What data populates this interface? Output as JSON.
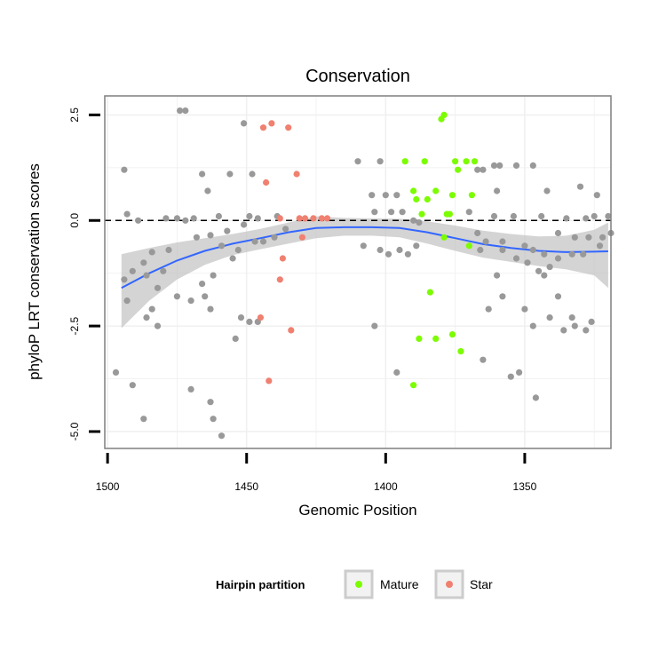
{
  "chart_data": {
    "type": "scatter",
    "title": "Conservation",
    "xlabel": "Genomic Position",
    "ylabel": "phyloP LRT conservation scores",
    "xlim": [
      1501,
      1319
    ],
    "ylim": [
      -5.4,
      2.95
    ],
    "x_reversed": true,
    "x_ticks": [
      1500,
      1450,
      1400,
      1350
    ],
    "x_tick_labels": [
      "1500",
      "1450",
      "1400",
      "1350"
    ],
    "y_ticks": [
      -5,
      -2.5,
      0,
      2.5
    ],
    "y_tick_labels": [
      "-5.0",
      "-2.5",
      "0.0",
      "2.5"
    ],
    "grid": true,
    "reference_line": {
      "y": 0,
      "style": "dashed",
      "color": "#000000"
    },
    "legend": {
      "title": "Hairpin partition",
      "position": "bottom",
      "entries": [
        {
          "label": "Mature",
          "color": "#7CFC00"
        },
        {
          "label": "Star",
          "color": "#F08070"
        }
      ]
    },
    "smooth": {
      "color": "#3366FF",
      "band_color": "#bdbdbd",
      "x": [
        1495,
        1485,
        1475,
        1465,
        1455,
        1445,
        1435,
        1425,
        1415,
        1405,
        1395,
        1385,
        1375,
        1365,
        1355,
        1345,
        1335,
        1325,
        1320
      ],
      "y": [
        -1.6,
        -1.25,
        -0.95,
        -0.72,
        -0.55,
        -0.42,
        -0.28,
        -0.18,
        -0.16,
        -0.16,
        -0.18,
        -0.28,
        -0.42,
        -0.56,
        -0.65,
        -0.72,
        -0.75,
        -0.74,
        -0.73
      ],
      "lower": [
        -2.55,
        -1.9,
        -1.4,
        -1.05,
        -0.82,
        -0.68,
        -0.55,
        -0.42,
        -0.36,
        -0.36,
        -0.4,
        -0.55,
        -0.72,
        -0.88,
        -0.98,
        -1.08,
        -1.16,
        -1.3,
        -1.6
      ],
      "upper": [
        -0.8,
        -0.65,
        -0.52,
        -0.42,
        -0.32,
        -0.2,
        -0.05,
        0.1,
        0.06,
        0.05,
        0.04,
        -0.02,
        -0.12,
        -0.24,
        -0.32,
        -0.38,
        -0.36,
        -0.22,
        -0.05
      ]
    },
    "series": [
      {
        "name": "Mature",
        "color": "#7CFC00",
        "points": [
          [
            1380,
            2.4
          ],
          [
            1379,
            2.5
          ],
          [
            1393,
            1.4
          ],
          [
            1386,
            1.4
          ],
          [
            1375,
            1.4
          ],
          [
            1371,
            1.4
          ],
          [
            1368,
            1.4
          ],
          [
            1390,
            0.7
          ],
          [
            1382,
            0.7
          ],
          [
            1389,
            0.5
          ],
          [
            1385,
            0.5
          ],
          [
            1376,
            0.6
          ],
          [
            1369,
            0.6
          ],
          [
            1374,
            1.2
          ],
          [
            1387,
            0.15
          ],
          [
            1378,
            0.15
          ],
          [
            1377,
            0.15
          ],
          [
            1379,
            -0.4
          ],
          [
            1370,
            -0.6
          ],
          [
            1384,
            -1.7
          ],
          [
            1388,
            -2.8
          ],
          [
            1382,
            -2.8
          ],
          [
            1376,
            -2.7
          ],
          [
            1373,
            -3.1
          ],
          [
            1390,
            -3.9
          ]
        ]
      },
      {
        "name": "Star",
        "color": "#F08070",
        "points": [
          [
            1444,
            2.2
          ],
          [
            1441,
            2.3
          ],
          [
            1435,
            2.2
          ],
          [
            1432,
            1.1
          ],
          [
            1443,
            0.9
          ],
          [
            1438,
            0.05
          ],
          [
            1431,
            0.05
          ],
          [
            1429,
            0.05
          ],
          [
            1426,
            0.05
          ],
          [
            1423,
            0.05
          ],
          [
            1421,
            0.05
          ],
          [
            1430,
            -0.4
          ],
          [
            1437,
            -0.9
          ],
          [
            1438,
            -1.4
          ],
          [
            1445,
            -2.3
          ],
          [
            1434,
            -2.6
          ],
          [
            1442,
            -3.8
          ]
        ]
      },
      {
        "name": "",
        "color": "#999999",
        "points": [
          [
            1474,
            2.6
          ],
          [
            1472,
            2.6
          ],
          [
            1451,
            2.3
          ],
          [
            1494,
            1.2
          ],
          [
            1466,
            1.1
          ],
          [
            1456,
            1.1
          ],
          [
            1448,
            1.1
          ],
          [
            1464,
            0.7
          ],
          [
            1493,
            0.15
          ],
          [
            1489,
            0.0
          ],
          [
            1479,
            0.05
          ],
          [
            1475,
            0.05
          ],
          [
            1472,
            0.0
          ],
          [
            1469,
            0.05
          ],
          [
            1460,
            0.1
          ],
          [
            1449,
            0.1
          ],
          [
            1446,
            0.05
          ],
          [
            1439,
            0.1
          ],
          [
            1451,
            -0.1
          ],
          [
            1457,
            -0.25
          ],
          [
            1463,
            -0.35
          ],
          [
            1468,
            -0.4
          ],
          [
            1478,
            -0.7
          ],
          [
            1484,
            -0.75
          ],
          [
            1487,
            -1.0
          ],
          [
            1491,
            -1.2
          ],
          [
            1494,
            -1.4
          ],
          [
            1480,
            -1.2
          ],
          [
            1486,
            -1.3
          ],
          [
            1482,
            -1.6
          ],
          [
            1475,
            -1.8
          ],
          [
            1466,
            -1.5
          ],
          [
            1462,
            -1.3
          ],
          [
            1455,
            -0.9
          ],
          [
            1459,
            -0.6
          ],
          [
            1453,
            -0.7
          ],
          [
            1447,
            -0.5
          ],
          [
            1444,
            -0.5
          ],
          [
            1440,
            -0.4
          ],
          [
            1436,
            -0.2
          ],
          [
            1484,
            -2.1
          ],
          [
            1486,
            -2.3
          ],
          [
            1482,
            -2.5
          ],
          [
            1470,
            -1.9
          ],
          [
            1465,
            -1.8
          ],
          [
            1493,
            -1.9
          ],
          [
            1463,
            -2.1
          ],
          [
            1452,
            -2.3
          ],
          [
            1449,
            -2.4
          ],
          [
            1446,
            -2.4
          ],
          [
            1454,
            -2.8
          ],
          [
            1497,
            -3.6
          ],
          [
            1491,
            -3.9
          ],
          [
            1487,
            -4.7
          ],
          [
            1470,
            -4.0
          ],
          [
            1463,
            -4.3
          ],
          [
            1462,
            -4.7
          ],
          [
            1459,
            -5.1
          ],
          [
            1410,
            1.4
          ],
          [
            1402,
            1.4
          ],
          [
            1405,
            0.6
          ],
          [
            1400,
            0.6
          ],
          [
            1396,
            0.6
          ],
          [
            1404,
            0.2
          ],
          [
            1398,
            0.2
          ],
          [
            1394,
            0.2
          ],
          [
            1390,
            0.0
          ],
          [
            1388,
            -0.05
          ],
          [
            1408,
            -0.6
          ],
          [
            1402,
            -0.7
          ],
          [
            1399,
            -0.8
          ],
          [
            1395,
            -0.7
          ],
          [
            1392,
            -0.8
          ],
          [
            1389,
            -0.6
          ],
          [
            1404,
            -2.5
          ],
          [
            1396,
            -3.6
          ],
          [
            1361,
            1.3
          ],
          [
            1367,
            1.2
          ],
          [
            1365,
            1.2
          ],
          [
            1359,
            1.3
          ],
          [
            1353,
            1.3
          ],
          [
            1347,
            1.3
          ],
          [
            1360,
            0.7
          ],
          [
            1342,
            0.7
          ],
          [
            1330,
            0.8
          ],
          [
            1324,
            0.6
          ],
          [
            1370,
            0.2
          ],
          [
            1361,
            0.1
          ],
          [
            1354,
            0.1
          ],
          [
            1344,
            0.1
          ],
          [
            1335,
            0.05
          ],
          [
            1328,
            0.05
          ],
          [
            1325,
            0.1
          ],
          [
            1320,
            0.1
          ],
          [
            1367,
            -0.3
          ],
          [
            1364,
            -0.5
          ],
          [
            1358,
            -0.5
          ],
          [
            1350,
            -0.6
          ],
          [
            1338,
            -0.3
          ],
          [
            1332,
            -0.4
          ],
          [
            1327,
            -0.4
          ],
          [
            1322,
            -0.4
          ],
          [
            1366,
            -0.7
          ],
          [
            1358,
            -0.7
          ],
          [
            1347,
            -0.7
          ],
          [
            1343,
            -0.8
          ],
          [
            1338,
            -0.9
          ],
          [
            1333,
            -0.8
          ],
          [
            1329,
            -0.8
          ],
          [
            1323,
            -0.6
          ],
          [
            1319,
            -0.3
          ],
          [
            1353,
            -0.9
          ],
          [
            1349,
            -1.0
          ],
          [
            1345,
            -1.2
          ],
          [
            1341,
            -1.1
          ],
          [
            1360,
            -1.3
          ],
          [
            1343,
            -1.3
          ],
          [
            1363,
            -2.1
          ],
          [
            1358,
            -1.8
          ],
          [
            1350,
            -2.1
          ],
          [
            1338,
            -1.8
          ],
          [
            1341,
            -2.3
          ],
          [
            1336,
            -2.6
          ],
          [
            1332,
            -2.5
          ],
          [
            1347,
            -2.5
          ],
          [
            1326,
            -2.4
          ],
          [
            1365,
            -3.3
          ],
          [
            1355,
            -3.7
          ],
          [
            1352,
            -3.6
          ],
          [
            1346,
            -4.2
          ],
          [
            1333,
            -2.3
          ],
          [
            1328,
            -2.6
          ]
        ]
      }
    ]
  }
}
